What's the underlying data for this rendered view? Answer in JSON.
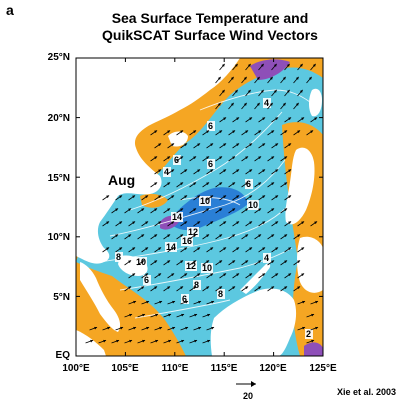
{
  "panel_letter": "a",
  "title_lines": [
    "Sea Surface Temperature and",
    "QuikSCAT Surface Wind Vectors"
  ],
  "y_labels": [
    "25°N",
    "20°N",
    "15°N",
    "10°N",
    "5°N",
    "EQ"
  ],
  "x_labels": [
    "100°E",
    "105°E",
    "110°E",
    "115°E",
    "120°E",
    "125°E"
  ],
  "month_label": "Aug",
  "reference_vector_label": "20",
  "credit": "Xie et al. 2003",
  "colors": {
    "warm_sst": "#f5a623",
    "cool_sst": "#5cc8e0",
    "coldest_sst": "#2a7fd6",
    "purple_sst": "#8e4fb8",
    "land": "#ffffff",
    "contours": "#ffffff",
    "vectors": "#000000"
  },
  "contour_labels": [
    "4",
    "6",
    "6",
    "6",
    "4",
    "6",
    "10",
    "10",
    "14",
    "12",
    "16",
    "14",
    "8",
    "10",
    "12",
    "10",
    "6",
    "8",
    "8",
    "6",
    "4",
    "2"
  ]
}
